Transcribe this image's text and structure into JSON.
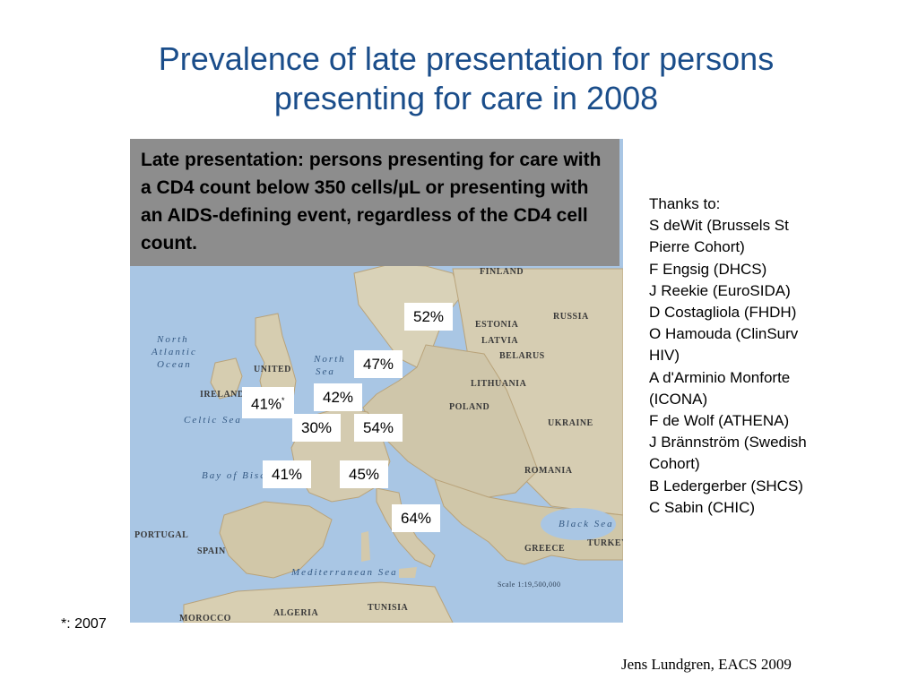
{
  "slide": {
    "title_line1": "Prevalence of late presentation for persons",
    "title_line2": "presenting for care in 2008",
    "definition": "Late presentation: persons presenting for care with a CD4 count below 350 cells/µL or presenting with an AIDS-defining event, regardless of the CD4 cell count.",
    "footnote": "*: 2007",
    "credit": "Jens Lundgren, EACS 2009"
  },
  "map": {
    "labels": {
      "north_atlantic_1": "North",
      "north_atlantic_2": "Atlantic",
      "north_atlantic_3": "Ocean",
      "north_sea_1": "North",
      "north_sea_2": "Sea",
      "bay_of_biscay": "Bay of Biscay",
      "mediterranean": "Mediterranean Sea",
      "finland": "FINLAND",
      "russia": "RUSSIA",
      "ukraine": "UKRAINE",
      "belarus": "BELARUS",
      "poland": "POLAND",
      "romania": "ROMANIA",
      "spain": "SPAIN",
      "portugal": "PORTUGAL",
      "algeria": "ALGERIA",
      "morocco": "MOROCCO",
      "tunisia": "TUNISIA",
      "greece": "GREECE",
      "turkey": "TURKEY",
      "united": "UNITED",
      "ireland": "IRELAND",
      "lithuania": "LITHUANIA",
      "latvia": "LATVIA",
      "estonia": "ESTONIA",
      "black_sea": "Black Sea",
      "celtic_sea": "Celtic Sea",
      "scale": "Scale 1:19,500,000"
    },
    "percentages": {
      "p52": "52%",
      "p47": "47%",
      "p41a": "41%",
      "p41a_mark": "*",
      "p42": "42%",
      "p30": "30%",
      "p54": "54%",
      "p41b": "41%",
      "p45": "45%",
      "p64": "64%"
    }
  },
  "thanks": {
    "heading": "Thanks to:",
    "items": [
      "S deWit (Brussels St\nPierre Cohort)",
      "F Engsig (DHCS)",
      "J Reekie (EuroSIDA)",
      "D Costagliola (FHDH)",
      "O Hamouda (ClinSurv\nHIV)",
      "A d'Arminio Monforte\n(ICONA)",
      "F de Wolf (ATHENA)",
      "J Brännström (Swedish\nCohort)",
      "B Ledergerber (SHCS)",
      "C Sabin (CHIC)"
    ]
  }
}
